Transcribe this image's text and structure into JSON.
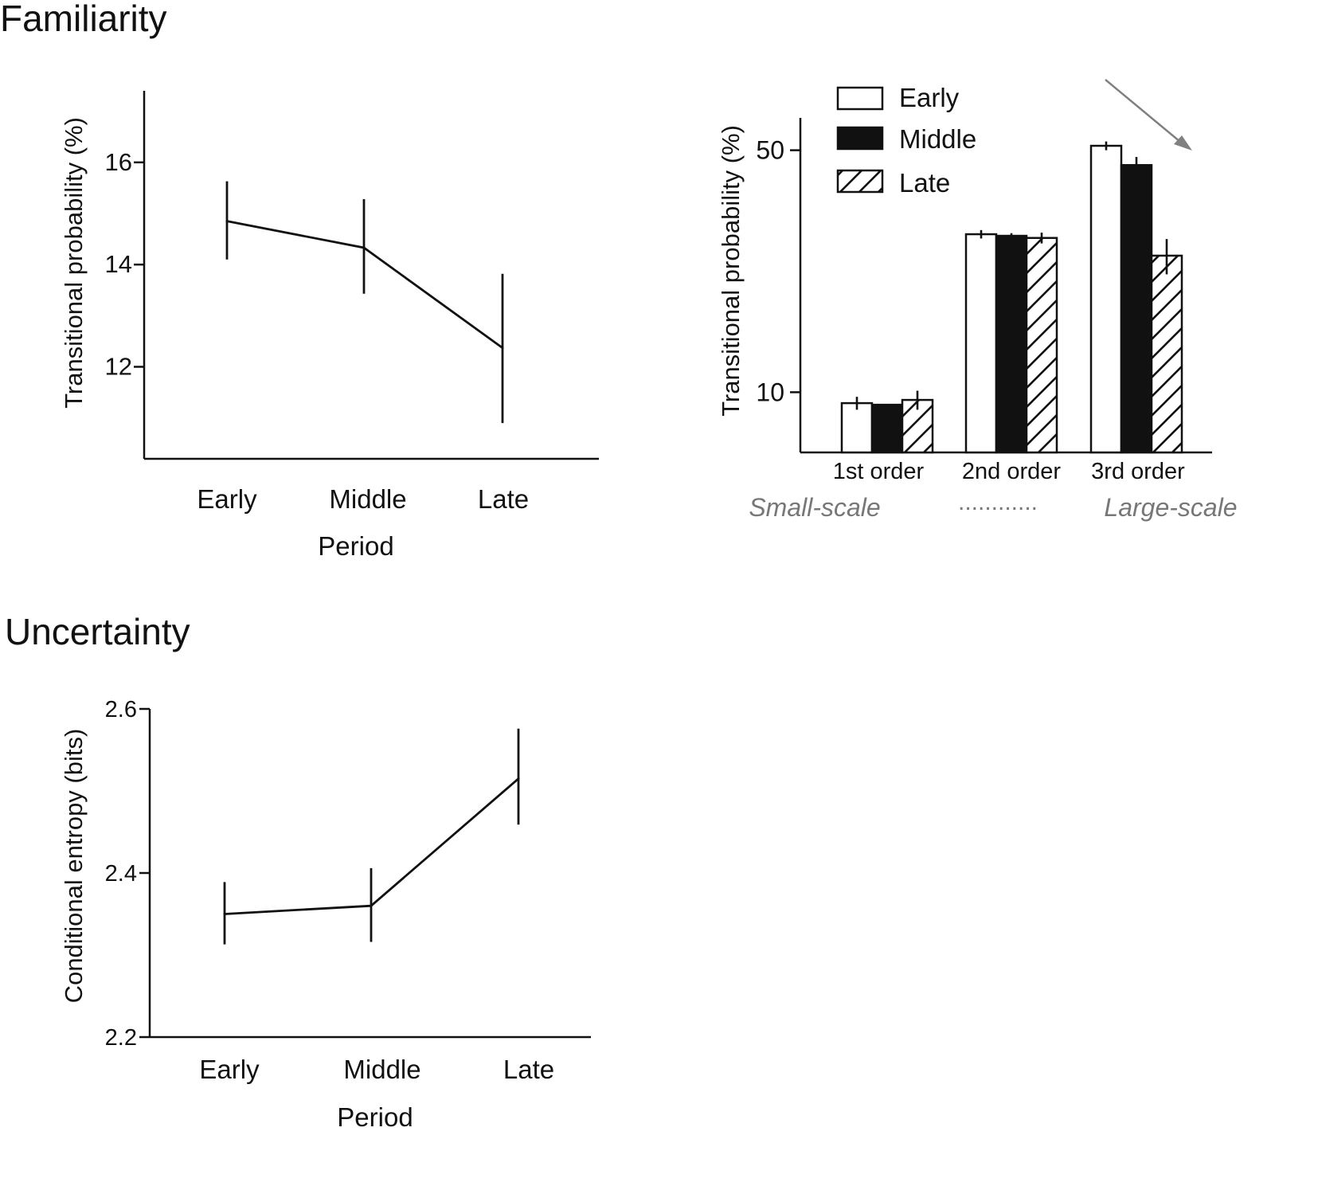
{
  "sections": {
    "familiarity_title": "Familiarity",
    "uncertainty_title": "Uncertainty"
  },
  "chart_data": [
    {
      "id": "familiarity-line",
      "type": "line",
      "title": "",
      "xlabel": "Period",
      "ylabel": "Transitional probability (%)",
      "categories": [
        "Early",
        "Middle",
        "Late"
      ],
      "values": [
        14.85,
        14.33,
        12.37
      ],
      "err_low": [
        14.1,
        13.43,
        10.9
      ],
      "err_high": [
        15.63,
        15.28,
        13.82
      ],
      "yticks": [
        12,
        14,
        16
      ],
      "ylim": [
        10.2,
        17.4
      ]
    },
    {
      "id": "familiarity-bars",
      "type": "bar",
      "xlabel": "",
      "ylabel": "Transitional probability (%)",
      "scale": "log",
      "categories": [
        "1st order",
        "2nd order",
        "3rd order"
      ],
      "series": [
        {
          "name": "Early",
          "fill": "white",
          "values": [
            9.3,
            28.6,
            51.5
          ],
          "err": [
            0.4,
            0.8,
            1.5
          ]
        },
        {
          "name": "Middle",
          "fill": "black",
          "values": [
            9.2,
            28.3,
            45.3
          ],
          "err": [
            0.0,
            0.5,
            2.5
          ]
        },
        {
          "name": "Late",
          "fill": "hatch",
          "values": [
            9.5,
            27.9,
            24.8
          ],
          "err": [
            0.6,
            1.0,
            2.9
          ]
        }
      ],
      "yticks": [
        10,
        50
      ],
      "ylim": [
        6.7,
        62
      ],
      "scale_labels": {
        "left": "Small-scale",
        "middle": "............",
        "right": "Large-scale"
      }
    },
    {
      "id": "uncertainty-line",
      "type": "line",
      "title": "",
      "xlabel": "Period",
      "ylabel": "Conditional entropy (bits)",
      "categories": [
        "Early",
        "Middle",
        "Late"
      ],
      "values": [
        2.35,
        2.36,
        2.515
      ],
      "err_low": [
        2.313,
        2.316,
        2.459
      ],
      "err_high": [
        2.389,
        2.406,
        2.576
      ],
      "yticks": [
        2.2,
        2.4,
        2.6
      ],
      "ylim": [
        2.2,
        2.6
      ]
    }
  ],
  "colors": {
    "ink": "#111111",
    "gray": "#777777",
    "arrow": "#808080"
  }
}
